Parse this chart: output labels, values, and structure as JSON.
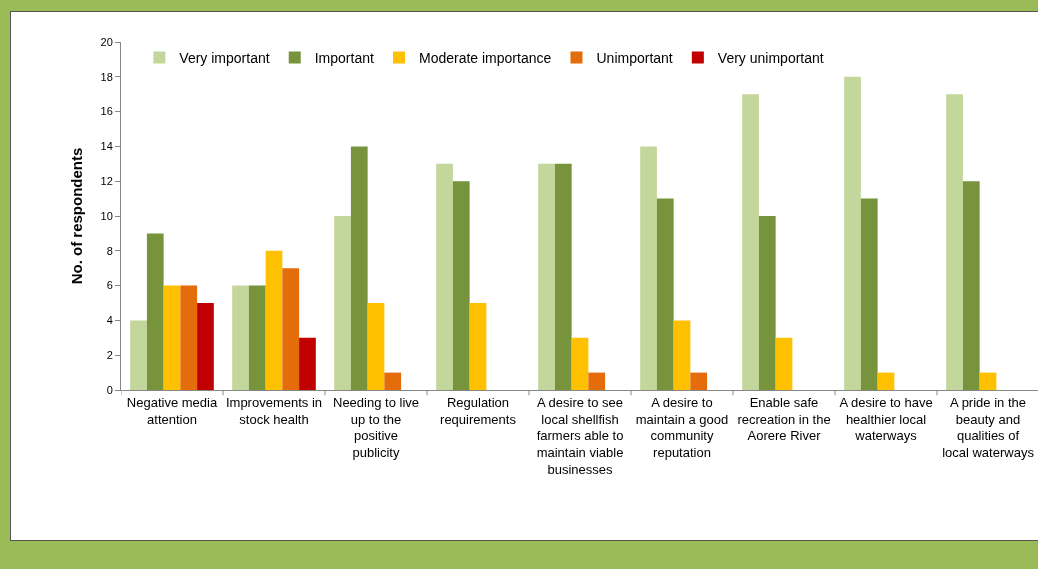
{
  "chart_data": {
    "type": "bar",
    "ylabel": "No. of respondents",
    "categories": [
      "Negative media attention",
      "Improvements in stock health",
      "Needing to live up to the positive publicity",
      "Regulation requirements",
      "A desire to see local shellfish farmers able to maintain viable businesses",
      "A desire to maintain a good community reputation",
      "Enable safe recreation in the Aorere River",
      "A desire to have healthier local waterways",
      "A pride in the beauty and qualities of local waterways"
    ],
    "series": [
      {
        "name": "Very important",
        "color": "#c3d69b",
        "values": [
          4,
          6,
          10,
          13,
          13,
          14,
          17,
          18,
          17
        ]
      },
      {
        "name": "Important",
        "color": "#77933c",
        "values": [
          9,
          6,
          14,
          12,
          13,
          11,
          10,
          11,
          12
        ]
      },
      {
        "name": "Moderate importance",
        "color": "#ffc000",
        "values": [
          6,
          8,
          5,
          5,
          3,
          4,
          3,
          1,
          1
        ]
      },
      {
        "name": "Unimportant",
        "color": "#e46c0a",
        "values": [
          6,
          7,
          1,
          0,
          1,
          1,
          0,
          0,
          0
        ]
      },
      {
        "name": "Very unimportant",
        "color": "#c00000",
        "values": [
          5,
          3,
          0,
          0,
          0,
          0,
          0,
          0,
          0
        ]
      }
    ],
    "ylim": [
      0,
      20
    ],
    "yticks": [
      0,
      2,
      4,
      6,
      8,
      10,
      12,
      14,
      16,
      18,
      20
    ],
    "grid": false,
    "legend": "top left"
  }
}
